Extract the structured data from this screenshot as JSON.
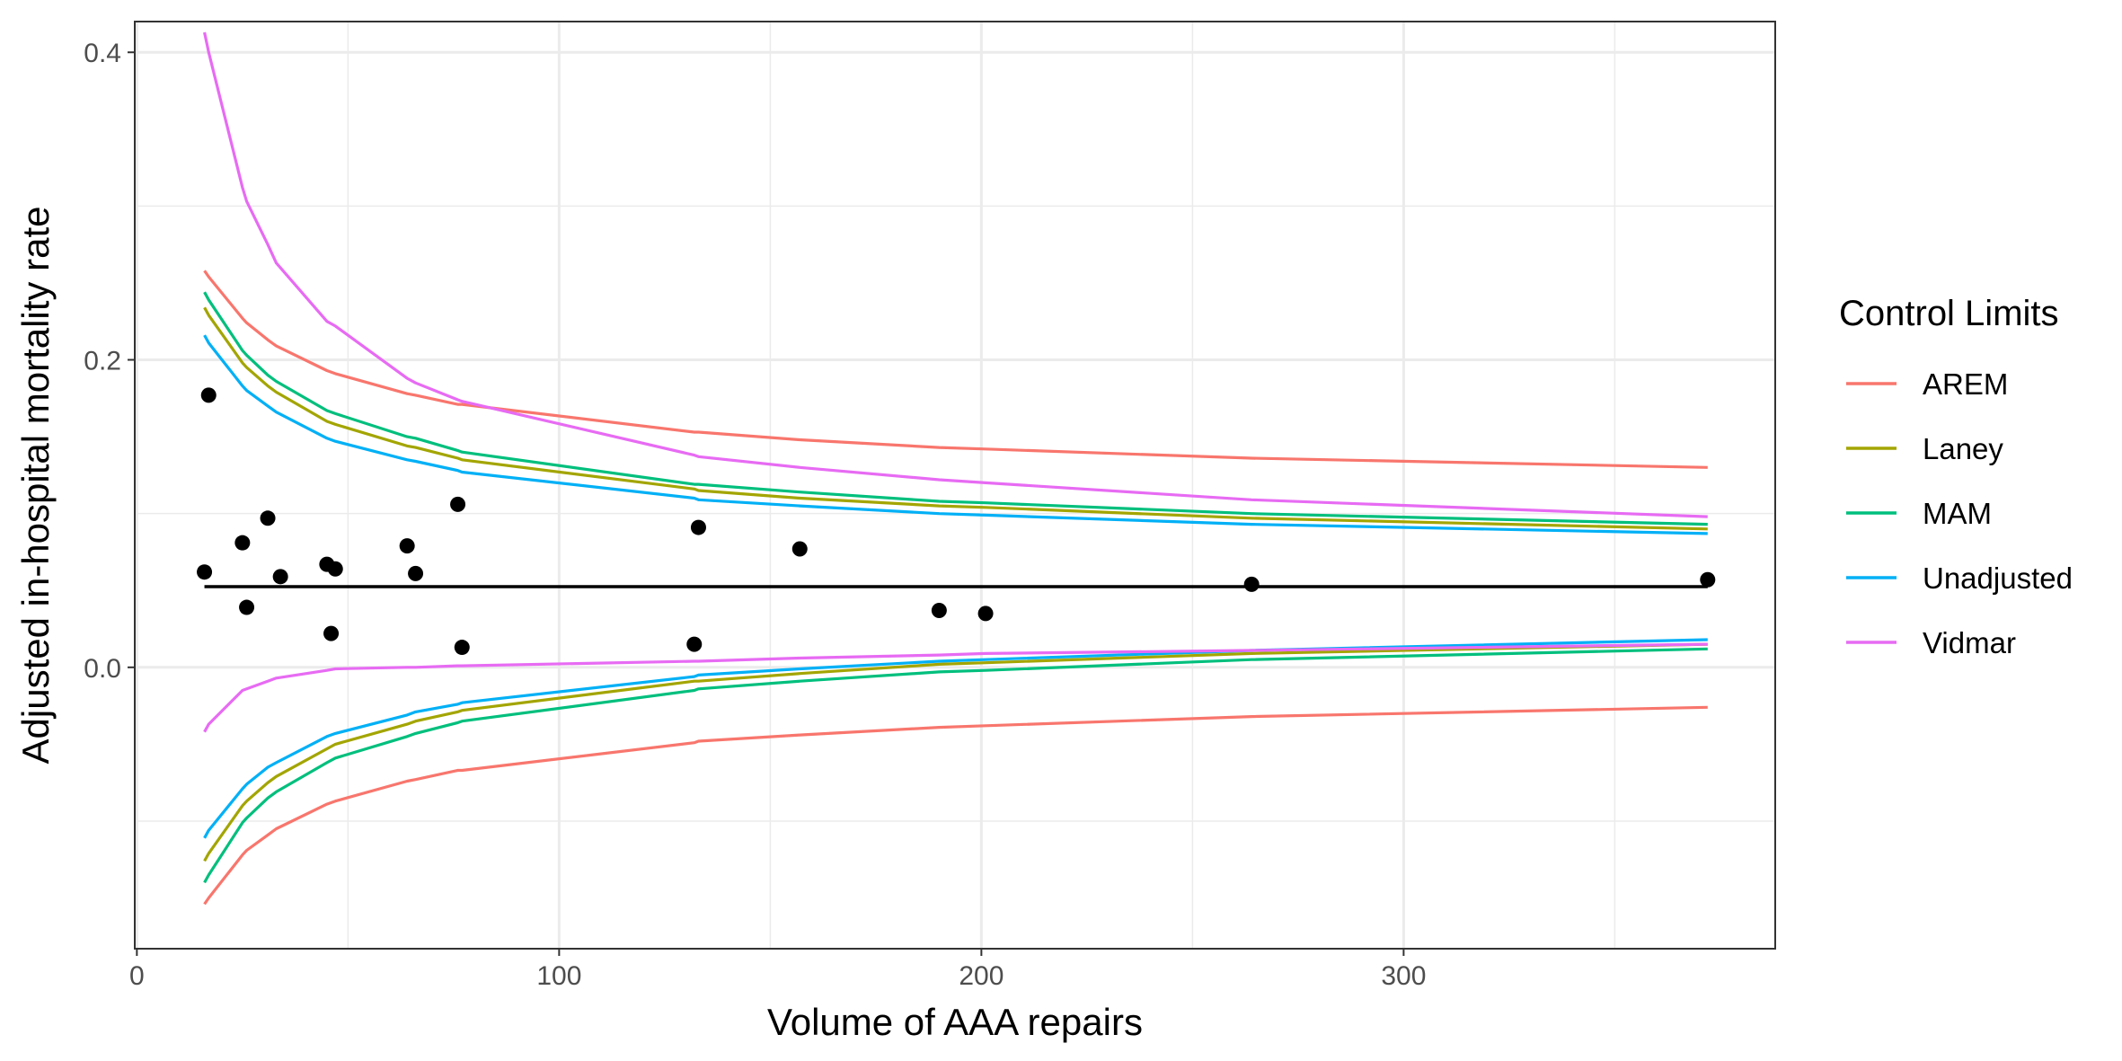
{
  "chart_data": {
    "type": "line",
    "title": "",
    "xlabel": "Volume of AAA repairs",
    "ylabel": "Adjusted in-hospital mortality rate",
    "xlim": [
      -0.5,
      388
    ],
    "ylim": [
      -0.183,
      0.42
    ],
    "x_ticks": [
      0,
      100,
      200,
      300
    ],
    "x_tick_labels": [
      "0",
      "100",
      "200",
      "300"
    ],
    "y_ticks": [
      0.0,
      0.2,
      0.4
    ],
    "y_tick_labels": [
      "0.0",
      "0.2",
      "0.4"
    ],
    "grid": true,
    "legend": {
      "title": "Control Limits",
      "position": "right"
    },
    "x": [
      16,
      17,
      25,
      26,
      31,
      33,
      45,
      47,
      64,
      66,
      76,
      77,
      132,
      133,
      157,
      190,
      201,
      264,
      372
    ],
    "series": [
      {
        "name": "AREM",
        "color": "#F8766D",
        "upper": [
          0.258,
          0.254,
          0.227,
          0.224,
          0.213,
          0.209,
          0.193,
          0.191,
          0.178,
          0.177,
          0.171,
          0.171,
          0.153,
          0.153,
          0.148,
          0.143,
          0.142,
          0.136,
          0.13
        ],
        "lower": [
          -0.154,
          -0.15,
          -0.122,
          -0.119,
          -0.109,
          -0.105,
          -0.089,
          -0.087,
          -0.074,
          -0.073,
          -0.067,
          -0.067,
          -0.049,
          -0.048,
          -0.044,
          -0.039,
          -0.038,
          -0.032,
          -0.026
        ]
      },
      {
        "name": "Laney",
        "color": "#A3A500",
        "upper": [
          0.234,
          0.229,
          0.198,
          0.195,
          0.183,
          0.179,
          0.16,
          0.158,
          0.144,
          0.143,
          0.136,
          0.135,
          0.116,
          0.115,
          0.11,
          0.105,
          0.104,
          0.097,
          0.09
        ],
        "lower": [
          -0.126,
          -0.121,
          -0.09,
          -0.087,
          -0.075,
          -0.071,
          -0.053,
          -0.05,
          -0.037,
          -0.035,
          -0.029,
          -0.028,
          -0.009,
          -0.009,
          -0.004,
          0.002,
          0.003,
          0.009,
          0.015
        ]
      },
      {
        "name": "MAM",
        "color": "#00BF7D",
        "upper": [
          0.244,
          0.239,
          0.206,
          0.203,
          0.19,
          0.186,
          0.167,
          0.165,
          0.15,
          0.149,
          0.141,
          0.14,
          0.119,
          0.119,
          0.114,
          0.108,
          0.107,
          0.1,
          0.093
        ],
        "lower": [
          -0.14,
          -0.135,
          -0.101,
          -0.098,
          -0.085,
          -0.081,
          -0.062,
          -0.059,
          -0.045,
          -0.043,
          -0.036,
          -0.035,
          -0.015,
          -0.014,
          -0.009,
          -0.003,
          -0.002,
          0.005,
          0.012
        ]
      },
      {
        "name": "Unadjusted",
        "color": "#00B0F6",
        "upper": [
          0.216,
          0.211,
          0.183,
          0.18,
          0.17,
          0.166,
          0.149,
          0.147,
          0.135,
          0.134,
          0.128,
          0.127,
          0.11,
          0.109,
          0.105,
          0.1,
          0.099,
          0.093,
          0.087
        ],
        "lower": [
          -0.111,
          -0.106,
          -0.079,
          -0.076,
          -0.065,
          -0.062,
          -0.045,
          -0.043,
          -0.031,
          -0.029,
          -0.024,
          -0.023,
          -0.006,
          -0.005,
          -0.001,
          0.004,
          0.005,
          0.011,
          0.018
        ]
      },
      {
        "name": "Vidmar",
        "color": "#E76BF3",
        "upper": [
          0.413,
          0.4,
          0.312,
          0.303,
          0.275,
          0.263,
          0.225,
          0.222,
          0.188,
          0.185,
          0.174,
          0.173,
          0.138,
          0.137,
          0.13,
          0.122,
          0.12,
          0.109,
          0.098
        ],
        "lower": [
          -0.042,
          -0.037,
          -0.015,
          -0.014,
          -0.009,
          -0.007,
          -0.002,
          -0.001,
          0.0,
          0.0,
          0.001,
          0.001,
          0.004,
          0.004,
          0.006,
          0.008,
          0.009,
          0.011,
          0.015
        ]
      }
    ],
    "center_line": {
      "y": 0.0525,
      "x_range": [
        16,
        372
      ],
      "color": "#000000"
    },
    "points": [
      {
        "x": 16,
        "y": 0.062
      },
      {
        "x": 17,
        "y": 0.177
      },
      {
        "x": 25,
        "y": 0.081
      },
      {
        "x": 26,
        "y": 0.039
      },
      {
        "x": 31,
        "y": 0.097
      },
      {
        "x": 34,
        "y": 0.059
      },
      {
        "x": 45,
        "y": 0.067
      },
      {
        "x": 46,
        "y": 0.022
      },
      {
        "x": 47,
        "y": 0.064
      },
      {
        "x": 64,
        "y": 0.079
      },
      {
        "x": 66,
        "y": 0.061
      },
      {
        "x": 76,
        "y": 0.106
      },
      {
        "x": 77,
        "y": 0.013
      },
      {
        "x": 132,
        "y": 0.015
      },
      {
        "x": 133,
        "y": 0.091
      },
      {
        "x": 157,
        "y": 0.077
      },
      {
        "x": 190,
        "y": 0.037
      },
      {
        "x": 201,
        "y": 0.035
      },
      {
        "x": 264,
        "y": 0.054
      },
      {
        "x": 372,
        "y": 0.057
      }
    ]
  }
}
